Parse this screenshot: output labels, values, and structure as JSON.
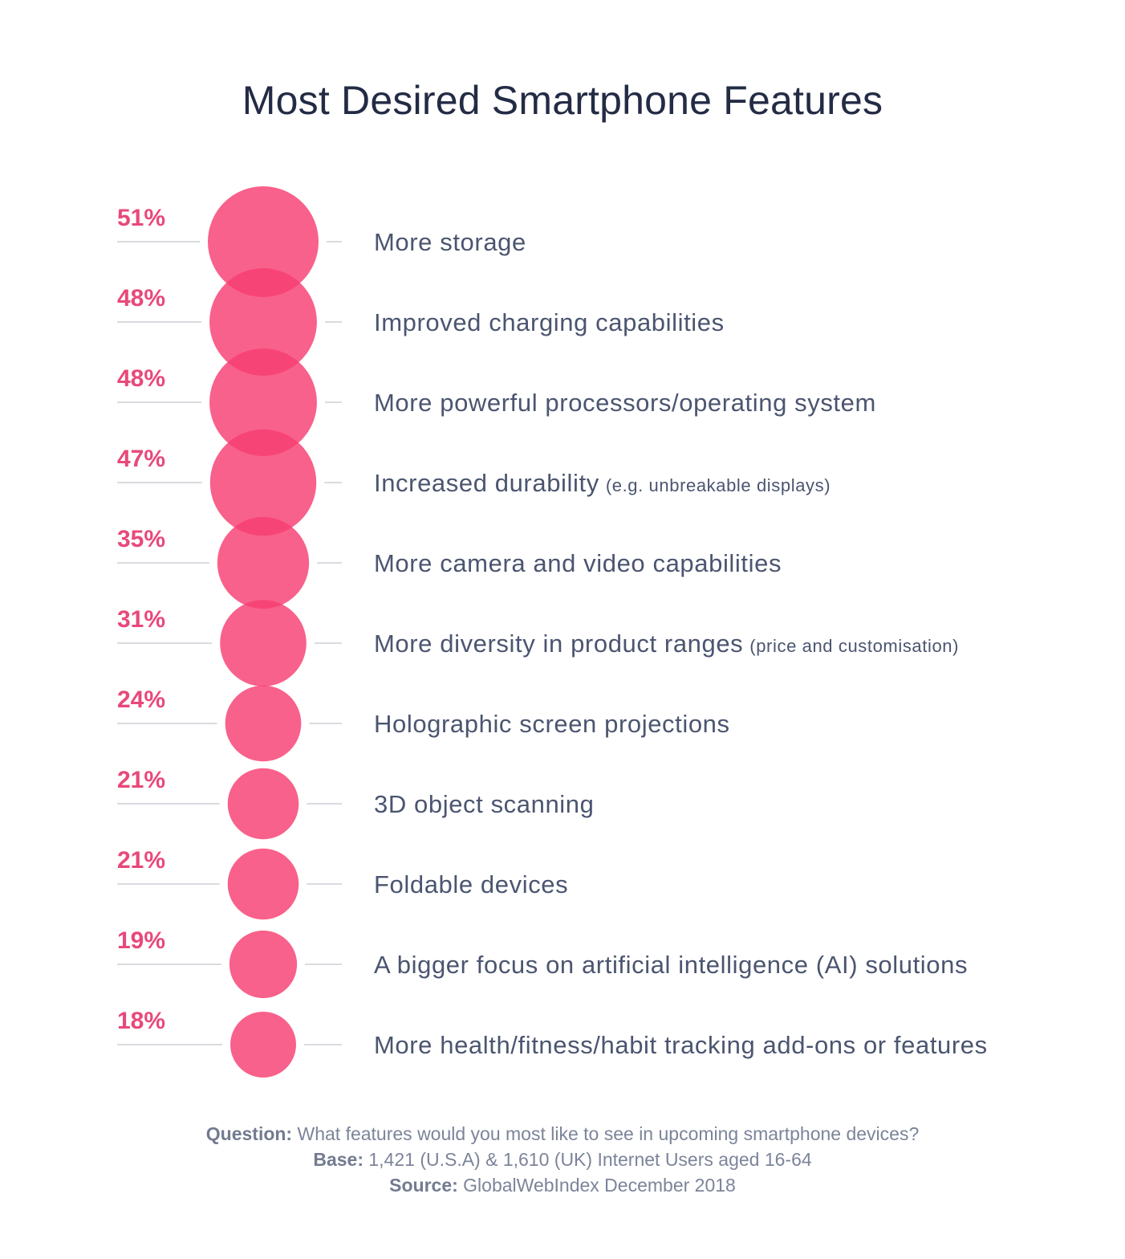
{
  "chart_data": {
    "type": "bubble",
    "title": "Most Desired Smartphone Features",
    "unit": "%",
    "categories": [
      {
        "label": "More storage",
        "note": ""
      },
      {
        "label": "Improved charging capabilities",
        "note": ""
      },
      {
        "label": "More powerful processors/operating system",
        "note": ""
      },
      {
        "label": "Increased durability",
        "note": "(e.g. unbreakable displays)"
      },
      {
        "label": "More camera and video capabilities",
        "note": ""
      },
      {
        "label": "More diversity in product ranges",
        "note": "(price and customisation)"
      },
      {
        "label": "Holographic screen projections",
        "note": ""
      },
      {
        "label": "3D object scanning",
        "note": ""
      },
      {
        "label": "Foldable devices",
        "note": ""
      },
      {
        "label": "A bigger focus on artificial intelligence (AI) solutions",
        "note": ""
      },
      {
        "label": "More health/fitness/habit tracking add-ons or features",
        "note": ""
      }
    ],
    "values": [
      51,
      48,
      48,
      47,
      35,
      31,
      24,
      21,
      21,
      19,
      18
    ],
    "value_labels": [
      "51%",
      "48%",
      "48%",
      "47%",
      "35%",
      "31%",
      "24%",
      "21%",
      "21%",
      "19%",
      "18%"
    ],
    "bubble_color": "#f73e72"
  },
  "footer": {
    "question_label": "Question:",
    "question_text": "What features would you most like to see in upcoming smartphone devices?",
    "base_label": "Base:",
    "base_text": "1,421 (U.S.A) & 1,610 (UK) Internet Users aged 16-64",
    "source_label": "Source:",
    "source_text": "GlobalWebIndex December 2018"
  }
}
